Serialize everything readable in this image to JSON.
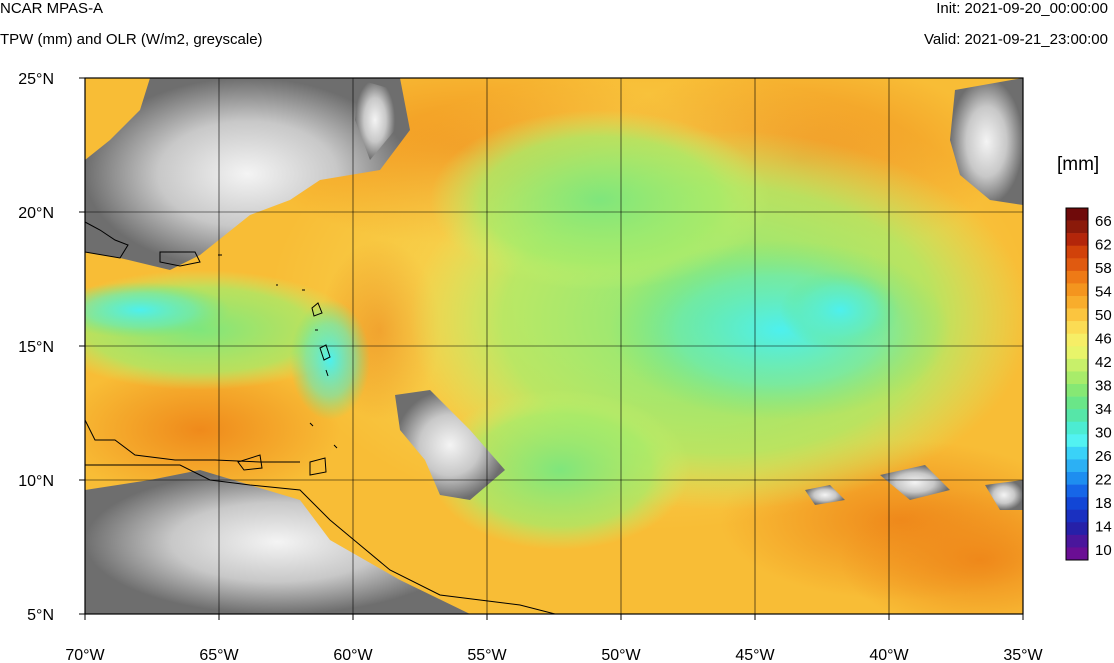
{
  "header": {
    "title": "NCAR MPAS-A",
    "subtitle": "TPW (mm) and OLR (W/m2, greyscale)",
    "init": "Init: 2021-09-20_00:00:00",
    "valid": "Valid: 2021-09-21_23:00:00"
  },
  "map": {
    "lon_range": [
      -70,
      -35
    ],
    "lat_range": [
      5,
      25
    ],
    "x_ticks": [
      {
        "lon": -70,
        "label": "70°W"
      },
      {
        "lon": -65,
        "label": "65°W"
      },
      {
        "lon": -60,
        "label": "60°W"
      },
      {
        "lon": -55,
        "label": "55°W"
      },
      {
        "lon": -50,
        "label": "50°W"
      },
      {
        "lon": -45,
        "label": "45°W"
      },
      {
        "lon": -40,
        "label": "40°W"
      },
      {
        "lon": -35,
        "label": "35°W"
      }
    ],
    "y_ticks": [
      {
        "lat": 25,
        "label": "25°N"
      },
      {
        "lat": 20,
        "label": "20°N"
      },
      {
        "lat": 15,
        "label": "15°N"
      },
      {
        "lat": 10,
        "label": "10°N"
      },
      {
        "lat": 5,
        "label": "5°N"
      }
    ],
    "grid": true
  },
  "colorbar": {
    "unit": "[mm]",
    "labels": [
      "66",
      "62",
      "58",
      "54",
      "50",
      "46",
      "42",
      "38",
      "34",
      "30",
      "26",
      "22",
      "18",
      "14",
      "10"
    ],
    "colors": [
      "#6f0a0a",
      "#8b1a0a",
      "#b3260a",
      "#d1420a",
      "#e05a10",
      "#ee7a16",
      "#f4951e",
      "#f8ad2c",
      "#fbc53f",
      "#fbdc54",
      "#f6ee66",
      "#e8f46a",
      "#c8f06a",
      "#a8ec6a",
      "#86e874",
      "#6ae688",
      "#56e6a8",
      "#4cecd2",
      "#52f2f2",
      "#3ad2f8",
      "#2cb0f4",
      "#1e8ef0",
      "#1666e8",
      "#1246d6",
      "#1a30c0",
      "#2620a8",
      "#4a169c",
      "#6a0e94"
    ]
  }
}
